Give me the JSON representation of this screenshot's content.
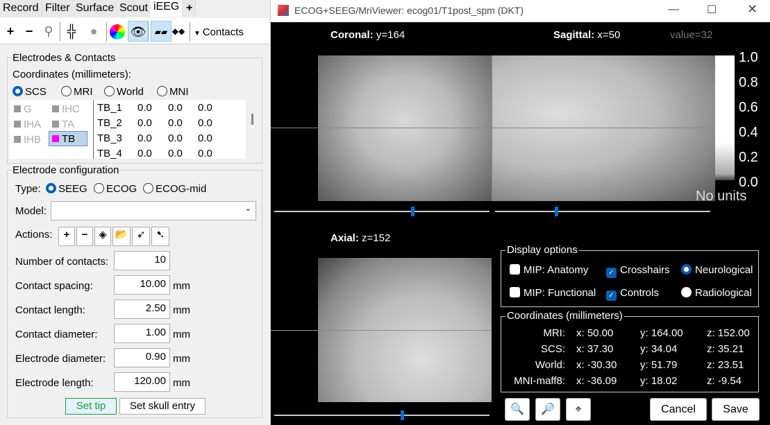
{
  "left": {
    "tabs": [
      "Record",
      "Filter",
      "Surface",
      "Scout",
      "iEEG",
      "+"
    ],
    "active_tab": "iEEG",
    "toolbar": {
      "contacts_label": "Contacts",
      "icons": [
        "plus-icon",
        "minus-icon",
        "electrode-tree-icon",
        "crosshair-icon",
        "dot-icon",
        "color-wheel-icon",
        "eye-icon",
        "electrode-display-icon",
        "contacts-display-icon"
      ]
    },
    "electrodes_panel": {
      "title": "Electrodes & Contacts",
      "coords_label": "Coordinates (millimeters):",
      "coord_systems": [
        "SCS",
        "MRI",
        "World",
        "MNI"
      ],
      "selected_coord": "SCS",
      "electrodes": [
        {
          "name": "G",
          "color": "#999999"
        },
        {
          "name": "IHC",
          "color": "#999999"
        },
        {
          "name": "IHA",
          "color": "#999999"
        },
        {
          "name": "TA",
          "color": "#999999"
        },
        {
          "name": "IHB",
          "color": "#999999"
        },
        {
          "name": "TB",
          "color": "#ff00ff"
        }
      ],
      "selected_electrode": "TB",
      "contacts": [
        [
          "TB_1",
          "0.0",
          "0.0",
          "0.0"
        ],
        [
          "TB_2",
          "0.0",
          "0.0",
          "0.0"
        ],
        [
          "TB_3",
          "0.0",
          "0.0",
          "0.0"
        ],
        [
          "TB_4",
          "0.0",
          "0.0",
          "0.0"
        ]
      ]
    },
    "config": {
      "title": "Electrode configuration",
      "type_label": "Type:",
      "types": [
        "SEEG",
        "ECOG",
        "ECOG-mid"
      ],
      "selected_type": "SEEG",
      "model_label": "Model:",
      "model_value": "",
      "actions_label": "Actions:",
      "fields": [
        {
          "label": "Number of contacts:",
          "value": "10",
          "unit": ""
        },
        {
          "label": "Contact spacing:",
          "value": "10.00",
          "unit": "mm"
        },
        {
          "label": "Contact length:",
          "value": "2.50",
          "unit": "mm"
        },
        {
          "label": "Contact diameter:",
          "value": "1.00",
          "unit": "mm"
        },
        {
          "label": "Electrode diameter:",
          "value": "0.90",
          "unit": "mm"
        },
        {
          "label": "Electrode length:",
          "value": "120.00",
          "unit": "mm"
        }
      ],
      "set_tip": "Set tip",
      "set_skull": "Set skull entry"
    }
  },
  "viewer": {
    "title": "ECOG+SEEG/MriViewer: ecog01/T1post_spm (DKT)",
    "coronal_label": "Coronal:",
    "coronal_value": "y=164",
    "sagittal_label": "Sagittal:",
    "sagittal_value": "x=50",
    "value_text": "value=32",
    "axial_label": "Axial:",
    "axial_value": "z=152",
    "colorbar_ticks": [
      "1.0",
      "0.8",
      "0.6",
      "0.4",
      "0.2",
      "0.0"
    ],
    "colorbar_units": "No units",
    "display_options": {
      "title": "Display options",
      "mip_anatomy": "MIP: Anatomy",
      "mip_functional": "MIP: Functional",
      "crosshairs": "Crosshairs",
      "controls": "Controls",
      "neurological": "Neurological",
      "radiological": "Radiological",
      "crosshairs_checked": true,
      "controls_checked": true,
      "mip_anatomy_checked": false,
      "mip_functional_checked": false,
      "orientation": "Neurological"
    },
    "coordinates": {
      "title": "Coordinates (millimeters)",
      "rows": [
        {
          "label": "MRI:",
          "x": "x: 50.00",
          "y": "y: 164.00",
          "z": "z: 152.00"
        },
        {
          "label": "SCS:",
          "x": "x: 37.30",
          "y": "y: 34.04",
          "z": "z: 35.21"
        },
        {
          "label": "World:",
          "x": "x: -30.30",
          "y": "y: 51.79",
          "z": "z: 23.51"
        },
        {
          "label": "MNI-maff8:",
          "x": "x: -36.09",
          "y": "y: 18.02",
          "z": "z: -9.54"
        }
      ]
    },
    "cancel": "Cancel",
    "save": "Save"
  }
}
